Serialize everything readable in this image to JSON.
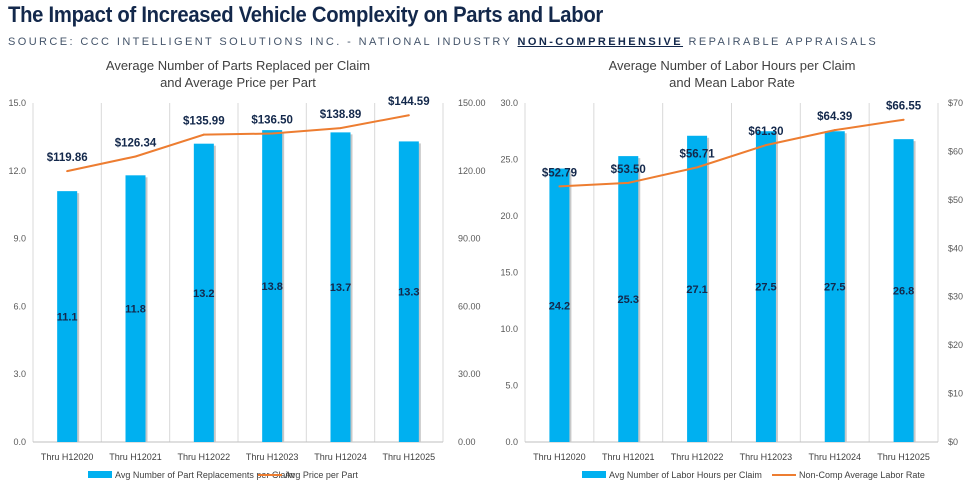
{
  "title": "The Impact of Increased Vehicle Complexity on Parts and Labor",
  "subtitle": {
    "pre": "SOURCE: CCC INTELLIGENT SOLUTIONS INC. - NATIONAL INDUSTRY ",
    "bold": "NON-COMPREHENSIVE",
    "post": " REPAIRABLE APPRAISALS"
  },
  "colors": {
    "bar": "#00b0f0",
    "line": "#ed7d31",
    "title": "#13284b",
    "value_label": "#13284b"
  },
  "chart_data": [
    {
      "type": "bar+line",
      "title": [
        "Average Number of Parts Replaced per Claim",
        "and Average Price per Part"
      ],
      "categories": [
        "Thru H12020",
        "Thru H12021",
        "Thru H12022",
        "Thru H12023",
        "Thru H12024",
        "Thru H12025"
      ],
      "series": [
        {
          "name": "Avg Number of Part Replacements per Claim",
          "type": "bar",
          "axis": "left",
          "values": [
            11.1,
            11.8,
            13.2,
            13.8,
            13.7,
            13.3
          ],
          "labels": [
            "11.1",
            "11.8",
            "13.2",
            "13.8",
            "13.7",
            "13.3"
          ]
        },
        {
          "name": "Avg Price per Part",
          "type": "line",
          "axis": "right",
          "values": [
            119.86,
            126.34,
            135.99,
            136.5,
            138.89,
            144.59
          ],
          "labels": [
            "$119.86",
            "$126.34",
            "$135.99",
            "$136.50",
            "$138.89",
            "$144.59"
          ]
        }
      ],
      "ylim_left": [
        0,
        15
      ],
      "yticks_left": [
        "0.0",
        "3.0",
        "6.0",
        "9.0",
        "12.0",
        "15.0"
      ],
      "ylim_right": [
        0,
        150
      ],
      "yticks_right": [
        "0.00",
        "30.00",
        "60.00",
        "90.00",
        "120.00",
        "150.00"
      ],
      "grid": "vertical",
      "legend": "bottom"
    },
    {
      "type": "bar+line",
      "title": [
        "Average Number of Labor Hours per Claim",
        "and Mean Labor Rate"
      ],
      "categories": [
        "Thru H12020",
        "Thru H12021",
        "Thru H12022",
        "Thru H12023",
        "Thru H12024",
        "Thru H12025"
      ],
      "series": [
        {
          "name": "Avg Number of Labor Hours per Claim",
          "type": "bar",
          "axis": "left",
          "values": [
            24.2,
            25.3,
            27.1,
            27.5,
            27.5,
            26.8
          ],
          "labels": [
            "24.2",
            "25.3",
            "27.1",
            "27.5",
            "27.5",
            "26.8"
          ]
        },
        {
          "name": "Non-Comp Average Labor Rate",
          "type": "line",
          "axis": "right",
          "values": [
            52.79,
            53.5,
            56.71,
            61.3,
            64.39,
            66.55
          ],
          "labels": [
            "$52.79",
            "$53.50",
            "$56.71",
            "$61.30",
            "$64.39",
            "$66.55"
          ]
        }
      ],
      "ylim_left": [
        0,
        30
      ],
      "yticks_left": [
        "0.0",
        "5.0",
        "10.0",
        "15.0",
        "20.0",
        "25.0",
        "30.0"
      ],
      "ylim_right": [
        0,
        70
      ],
      "yticks_right": [
        "$0",
        "$10",
        "$20",
        "$30",
        "$40",
        "$50",
        "$60",
        "$70"
      ],
      "grid": "vertical",
      "legend": "bottom"
    }
  ]
}
